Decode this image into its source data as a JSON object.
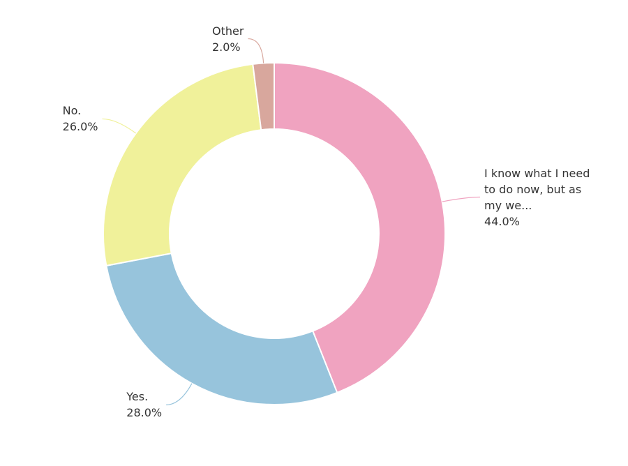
{
  "chart_data": {
    "type": "donut",
    "categories": [
      "I know what I need to do now, but as my we...",
      "Yes.",
      "No.",
      "Other"
    ],
    "values": [
      44,
      28,
      26,
      2
    ],
    "value_labels": [
      "44.0%",
      "28.0%",
      "26.0%",
      "2.0%"
    ],
    "colors": [
      "#f0a3c0",
      "#97c4dc",
      "#f0f19a",
      "#d8a79d"
    ]
  }
}
